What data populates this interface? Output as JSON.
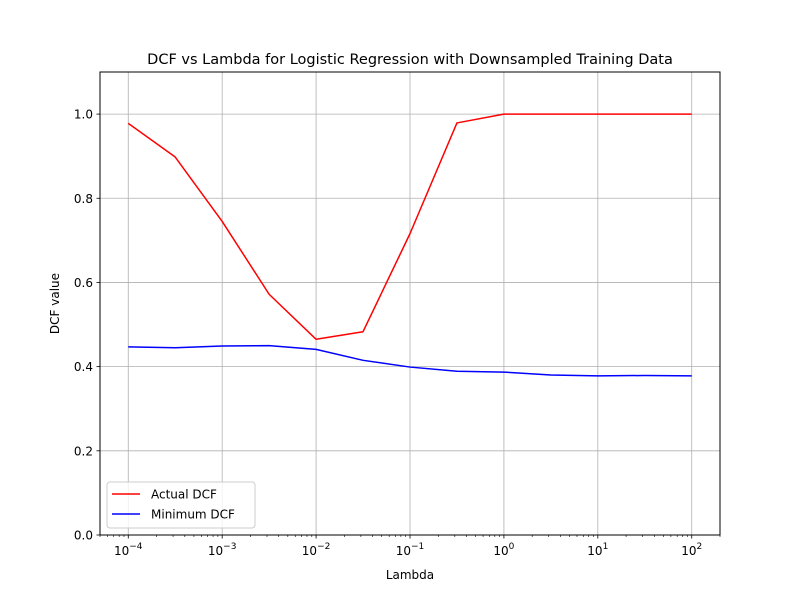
{
  "chart_data": {
    "type": "line",
    "title": "DCF vs Lambda for Logistic Regression with Downsampled Training Data",
    "xlabel": "Lambda",
    "ylabel": "DCF value",
    "xscale": "log",
    "xlim": [
      5e-05,
      200
    ],
    "ylim": [
      0,
      1.1
    ],
    "x_ticks": [
      {
        "base": "10",
        "exp": "−4",
        "value": 0.0001
      },
      {
        "base": "10",
        "exp": "−3",
        "value": 0.001
      },
      {
        "base": "10",
        "exp": "−2",
        "value": 0.01
      },
      {
        "base": "10",
        "exp": "−1",
        "value": 0.1
      },
      {
        "base": "10",
        "exp": "0",
        "value": 1
      },
      {
        "base": "10",
        "exp": "1",
        "value": 10
      },
      {
        "base": "10",
        "exp": "2",
        "value": 100
      }
    ],
    "y_ticks": [
      "0.0",
      "0.2",
      "0.4",
      "0.6",
      "0.8",
      "1.0"
    ],
    "grid": true,
    "legend_position": "lower-left",
    "x": [
      0.0001,
      0.000316,
      0.001,
      0.00316,
      0.01,
      0.0316,
      0.1,
      0.316,
      1,
      3.16,
      10,
      31.6,
      100
    ],
    "series": [
      {
        "name": "Actual DCF",
        "color": "#ff0000",
        "values": [
          0.978,
          0.898,
          0.745,
          0.572,
          0.465,
          0.483,
          0.716,
          0.979,
          1.0,
          1.0,
          1.0,
          1.0,
          1.0
        ]
      },
      {
        "name": "Minimum DCF",
        "color": "#0000ff",
        "values": [
          0.447,
          0.445,
          0.449,
          0.45,
          0.441,
          0.415,
          0.399,
          0.389,
          0.387,
          0.38,
          0.378,
          0.379,
          0.378
        ]
      }
    ]
  }
}
